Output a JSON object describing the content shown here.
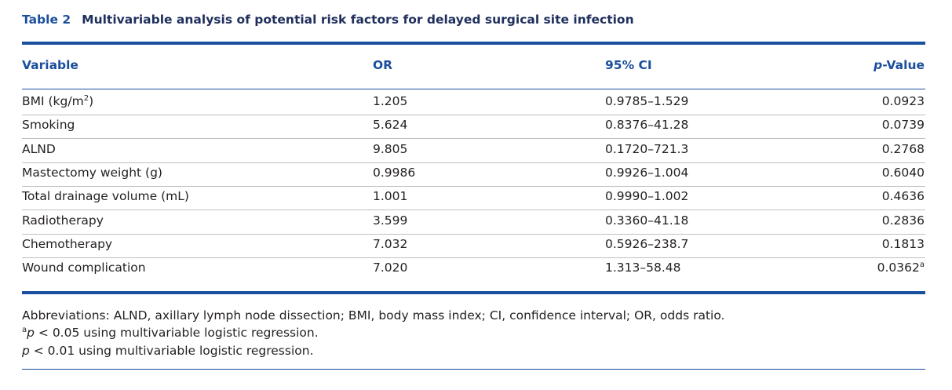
{
  "caption": {
    "label": "Table 2",
    "title": "Multivariable analysis of potential risk factors for delayed surgical site infection"
  },
  "headers": {
    "variable": "Variable",
    "or": "OR",
    "ci": "95% CI",
    "p_italic": "p",
    "p_rest": "-Value"
  },
  "rows": [
    {
      "variable": "BMI (kg/m",
      "variable_sup": "2",
      "variable_end": ")",
      "or": "1.205",
      "ci": "0.9785–1.529",
      "p": "0.0923",
      "p_sup": ""
    },
    {
      "variable": "Smoking",
      "variable_sup": "",
      "variable_end": "",
      "or": "5.624",
      "ci": "0.8376–41.28",
      "p": "0.0739",
      "p_sup": ""
    },
    {
      "variable": "ALND",
      "variable_sup": "",
      "variable_end": "",
      "or": "9.805",
      "ci": "0.1720–721.3",
      "p": "0.2768",
      "p_sup": ""
    },
    {
      "variable": "Mastectomy weight (g)",
      "variable_sup": "",
      "variable_end": "",
      "or": "0.9986",
      "ci": "0.9926–1.004",
      "p": "0.6040",
      "p_sup": ""
    },
    {
      "variable": "Total drainage volume (mL)",
      "variable_sup": "",
      "variable_end": "",
      "or": "1.001",
      "ci": "0.9990–1.002",
      "p": "0.4636",
      "p_sup": ""
    },
    {
      "variable": "Radiotherapy",
      "variable_sup": "",
      "variable_end": "",
      "or": "3.599",
      "ci": "0.3360–41.18",
      "p": "0.2836",
      "p_sup": ""
    },
    {
      "variable": "Chemotherapy",
      "variable_sup": "",
      "variable_end": "",
      "or": "7.032",
      "ci": "0.5926–238.7",
      "p": "0.1813",
      "p_sup": ""
    },
    {
      "variable": "Wound complication",
      "variable_sup": "",
      "variable_end": "",
      "or": "7.020",
      "ci": "1.313–58.48",
      "p": "0.0362",
      "p_sup": "a"
    }
  ],
  "footnotes": {
    "abbreviations": "Abbreviations: ALND, axillary lymph node dissection; BMI, body mass index; CI, confidence interval; OR, odds ratio.",
    "a_sup": "a",
    "a_p": "p",
    "a_text": " < 0.05 using multivariable logistic regression.",
    "b_p": "p",
    "b_text": " < 0.01 using multivariable logistic regression."
  }
}
